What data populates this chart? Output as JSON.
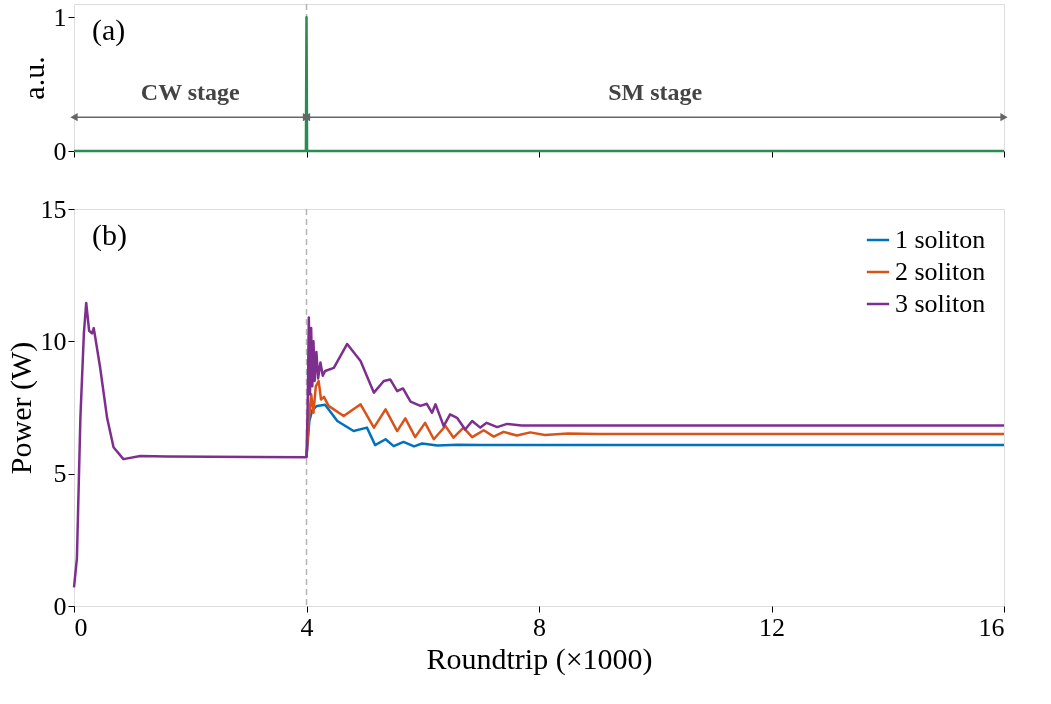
{
  "chart_data": [
    {
      "type": "line",
      "ylabel": "a.u.",
      "xlim": [
        0,
        16
      ],
      "xticks": [
        0,
        4,
        8,
        12,
        16
      ],
      "ylim": [
        0,
        1.1
      ],
      "yticks": [
        0,
        1
      ],
      "tick_labels": "y",
      "grid": false,
      "legend": false,
      "series": [
        {
          "color": "#2a8c55",
          "x": [
            0,
            3.99,
            4,
            4.01,
            16
          ],
          "values": [
            0,
            0,
            1,
            0,
            0
          ]
        }
      ],
      "ref_lines": [
        {
          "axis": "x",
          "value": 4,
          "color": "#b4b4b4",
          "line_style": "dashed"
        }
      ],
      "annotations": [
        "(a)",
        "CW stage",
        "SM stage"
      ]
    },
    {
      "type": "line",
      "xlabel": "Roundtrip (×1000)",
      "ylabel": "Power (W)",
      "xlim": [
        0,
        16
      ],
      "xticks": [
        0,
        4,
        8,
        12,
        16
      ],
      "ylim": [
        0,
        15
      ],
      "yticks": [
        0,
        5,
        10,
        15
      ],
      "grid": false,
      "legend": "top right",
      "series": [
        {
          "name": "1 soliton",
          "color": "#0072bd",
          "x": [
            4.0,
            4.05,
            4.1,
            4.18,
            4.32,
            4.53,
            4.81,
            5.04,
            5.18,
            5.36,
            5.5,
            5.67,
            5.85,
            5.99,
            6.25,
            6.6,
            7.0,
            16
          ],
          "values": [
            5.62,
            7.0,
            7.4,
            7.56,
            7.6,
            6.99,
            6.61,
            6.74,
            6.08,
            6.3,
            6.04,
            6.2,
            6.03,
            6.14,
            6.06,
            6.09,
            6.08,
            6.08
          ]
        },
        {
          "name": "2 soliton",
          "color": "#d95319",
          "x": [
            4.0,
            4.04,
            4.08,
            4.12,
            4.16,
            4.21,
            4.25,
            4.3,
            4.38,
            4.64,
            4.93,
            5.16,
            5.36,
            5.56,
            5.7,
            5.87,
            6.04,
            6.19,
            6.39,
            6.53,
            6.7,
            6.85,
            7.05,
            7.22,
            7.39,
            7.62,
            7.85,
            8.1,
            8.5,
            9.0,
            16
          ],
          "values": [
            5.62,
            7.0,
            8.0,
            7.3,
            8.3,
            8.5,
            7.8,
            7.9,
            7.56,
            7.18,
            7.62,
            6.74,
            7.43,
            6.61,
            7.09,
            6.38,
            6.92,
            6.3,
            6.8,
            6.36,
            6.74,
            6.38,
            6.64,
            6.4,
            6.58,
            6.44,
            6.56,
            6.46,
            6.52,
            6.5,
            6.5
          ]
        },
        {
          "name": "3 soliton",
          "color": "#7e2f8e",
          "x": [
            0,
            0.05,
            0.11,
            0.17,
            0.21,
            0.26,
            0.31,
            0.34,
            0.45,
            0.57,
            0.68,
            0.85,
            1.14,
            1.6,
            4.0,
            4.02,
            4.04,
            4.06,
            4.08,
            4.1,
            4.12,
            4.14,
            4.17,
            4.2,
            4.24,
            4.28,
            4.32,
            4.47,
            4.7,
            4.93,
            5.16,
            5.33,
            5.44,
            5.56,
            5.66,
            5.79,
            5.96,
            6.07,
            6.16,
            6.22,
            6.36,
            6.47,
            6.59,
            6.73,
            6.85,
            6.99,
            7.1,
            7.28,
            7.45,
            7.7,
            16
          ],
          "values": [
            0.7,
            1.8,
            7.1,
            10.3,
            11.45,
            10.4,
            10.3,
            10.5,
            9.0,
            7.1,
            6.0,
            5.55,
            5.67,
            5.65,
            5.62,
            7.5,
            10.9,
            8.0,
            10.5,
            8.3,
            10.0,
            8.5,
            9.6,
            8.6,
            9.2,
            8.7,
            8.88,
            9.0,
            9.9,
            9.26,
            8.06,
            8.5,
            8.56,
            8.12,
            8.22,
            7.72,
            7.56,
            7.64,
            7.3,
            7.62,
            6.8,
            7.24,
            7.11,
            6.67,
            6.99,
            6.74,
            6.92,
            6.76,
            6.88,
            6.82,
            6.82
          ]
        }
      ],
      "ref_lines": [
        {
          "axis": "x",
          "value": 4,
          "color": "#b4b4b4",
          "line_style": "dashed"
        }
      ],
      "annotations": [
        "(b)"
      ]
    }
  ]
}
